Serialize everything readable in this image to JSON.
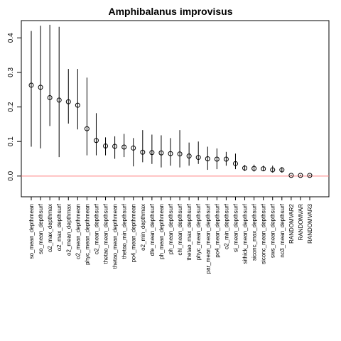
{
  "chart_data": {
    "type": "scatter",
    "title": "Amphibalanus improvisus",
    "xlabel": "",
    "ylabel": "",
    "ylim": [
      -0.06,
      0.45
    ],
    "yticks": [
      0.0,
      0.1,
      0.2,
      0.3,
      0.4
    ],
    "ytick_labels": [
      "0.0",
      "0.1",
      "0.2",
      "0.3",
      "0.4"
    ],
    "reference_line": {
      "y": 0.0,
      "color": "#ff8080"
    },
    "point_color": "#000000",
    "categories": [
      "so_mean_depthmean",
      "so_mean_depthsurf",
      "o2_max_depthmax",
      "o2_max_depthsurf",
      "o2_mean_depthmax",
      "o2_mean_depthmean",
      "phyc_mean_depthmean",
      "o2_mean_depthsurf",
      "thetao_mean_depthsurf",
      "thetao_mean_depthmean",
      "thetao_min_depthsurf",
      "po4_mean_depthmean",
      "o2_min_depthmax",
      "dfe_mean_depthsurf",
      "ph_mean_depthmean",
      "ph_mean_depthsurf",
      "chl_mean_depthsurf",
      "thetao_max_depthsurf",
      "phyc_mean_depthsurf",
      "par_mean_mean_depthsurf",
      "po4_mean_depthsurf",
      "o2_min_depthsurf",
      "si_mean_depthsurf",
      "sithick_mean_depthsurf",
      "siconc_max_depthsurf",
      "siconc_mean_depthsurf",
      "sws_mean_depthsurf",
      "no3_mean_depthsurf",
      "RANDOMVAR2",
      "RANDOMVAR",
      "RANDOMVAR3"
    ],
    "values": [
      0.263,
      0.257,
      0.227,
      0.22,
      0.215,
      0.205,
      0.137,
      0.103,
      0.087,
      0.086,
      0.084,
      0.081,
      0.069,
      0.068,
      0.067,
      0.065,
      0.064,
      0.058,
      0.054,
      0.05,
      0.049,
      0.049,
      0.036,
      0.023,
      0.022,
      0.021,
      0.018,
      0.018,
      0.002,
      0.002,
      0.002
    ],
    "lower": [
      0.085,
      0.08,
      0.145,
      0.055,
      0.152,
      0.135,
      0.06,
      0.06,
      0.06,
      0.05,
      0.055,
      0.028,
      0.04,
      0.035,
      0.025,
      0.03,
      0.025,
      0.03,
      0.035,
      0.018,
      0.02,
      0.03,
      0.02,
      0.015,
      0.013,
      0.015,
      0.01,
      0.01,
      0.0,
      0.0,
      0.0
    ],
    "upper": [
      0.42,
      0.435,
      0.438,
      0.432,
      0.31,
      0.31,
      0.285,
      0.182,
      0.112,
      0.115,
      0.122,
      0.11,
      0.133,
      0.12,
      0.118,
      0.11,
      0.133,
      0.097,
      0.1,
      0.085,
      0.08,
      0.07,
      0.065,
      0.032,
      0.033,
      0.03,
      0.03,
      0.026,
      0.004,
      0.004,
      0.004
    ]
  }
}
